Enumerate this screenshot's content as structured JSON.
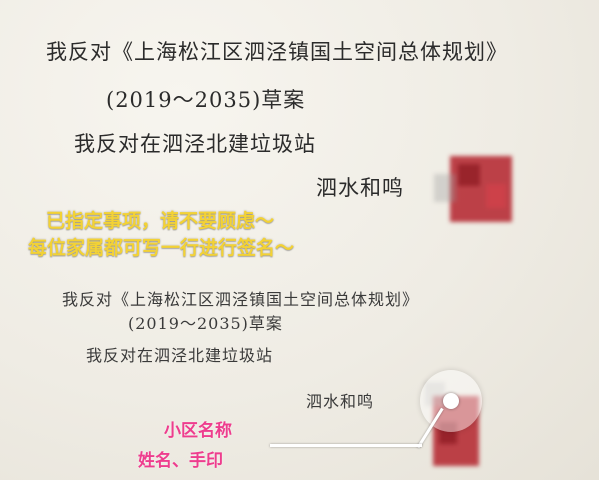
{
  "sheet": {
    "top_block": {
      "line1": "我反对《上海松江区泗泾镇国土空间总体规划》",
      "line2": "(2019～2035)草案",
      "line3": "我反对在泗泾北建垃圾站",
      "signature": "泗水和鸣"
    },
    "bottom_block": {
      "line1": "我反对《上海松江区泗泾镇国土空间总体规划》",
      "line2": "(2019～2035)草案",
      "line3": "我反对在泗泾北建垃圾站",
      "signature": "泗水和鸣"
    }
  },
  "annotations": {
    "yellow_line1": "已指定事项，请不要顾虑～",
    "yellow_line2": "每位家属都可写一行进行签名～",
    "pink_line1": "小区名称",
    "pink_line2": "姓名、手印",
    "yellow_color": "#f3d235",
    "pink_color": "#ee3d8e"
  },
  "colors": {
    "paper": "#f2efe8",
    "ink": "#2b2b2b",
    "stamp_red": "#b3222c"
  }
}
